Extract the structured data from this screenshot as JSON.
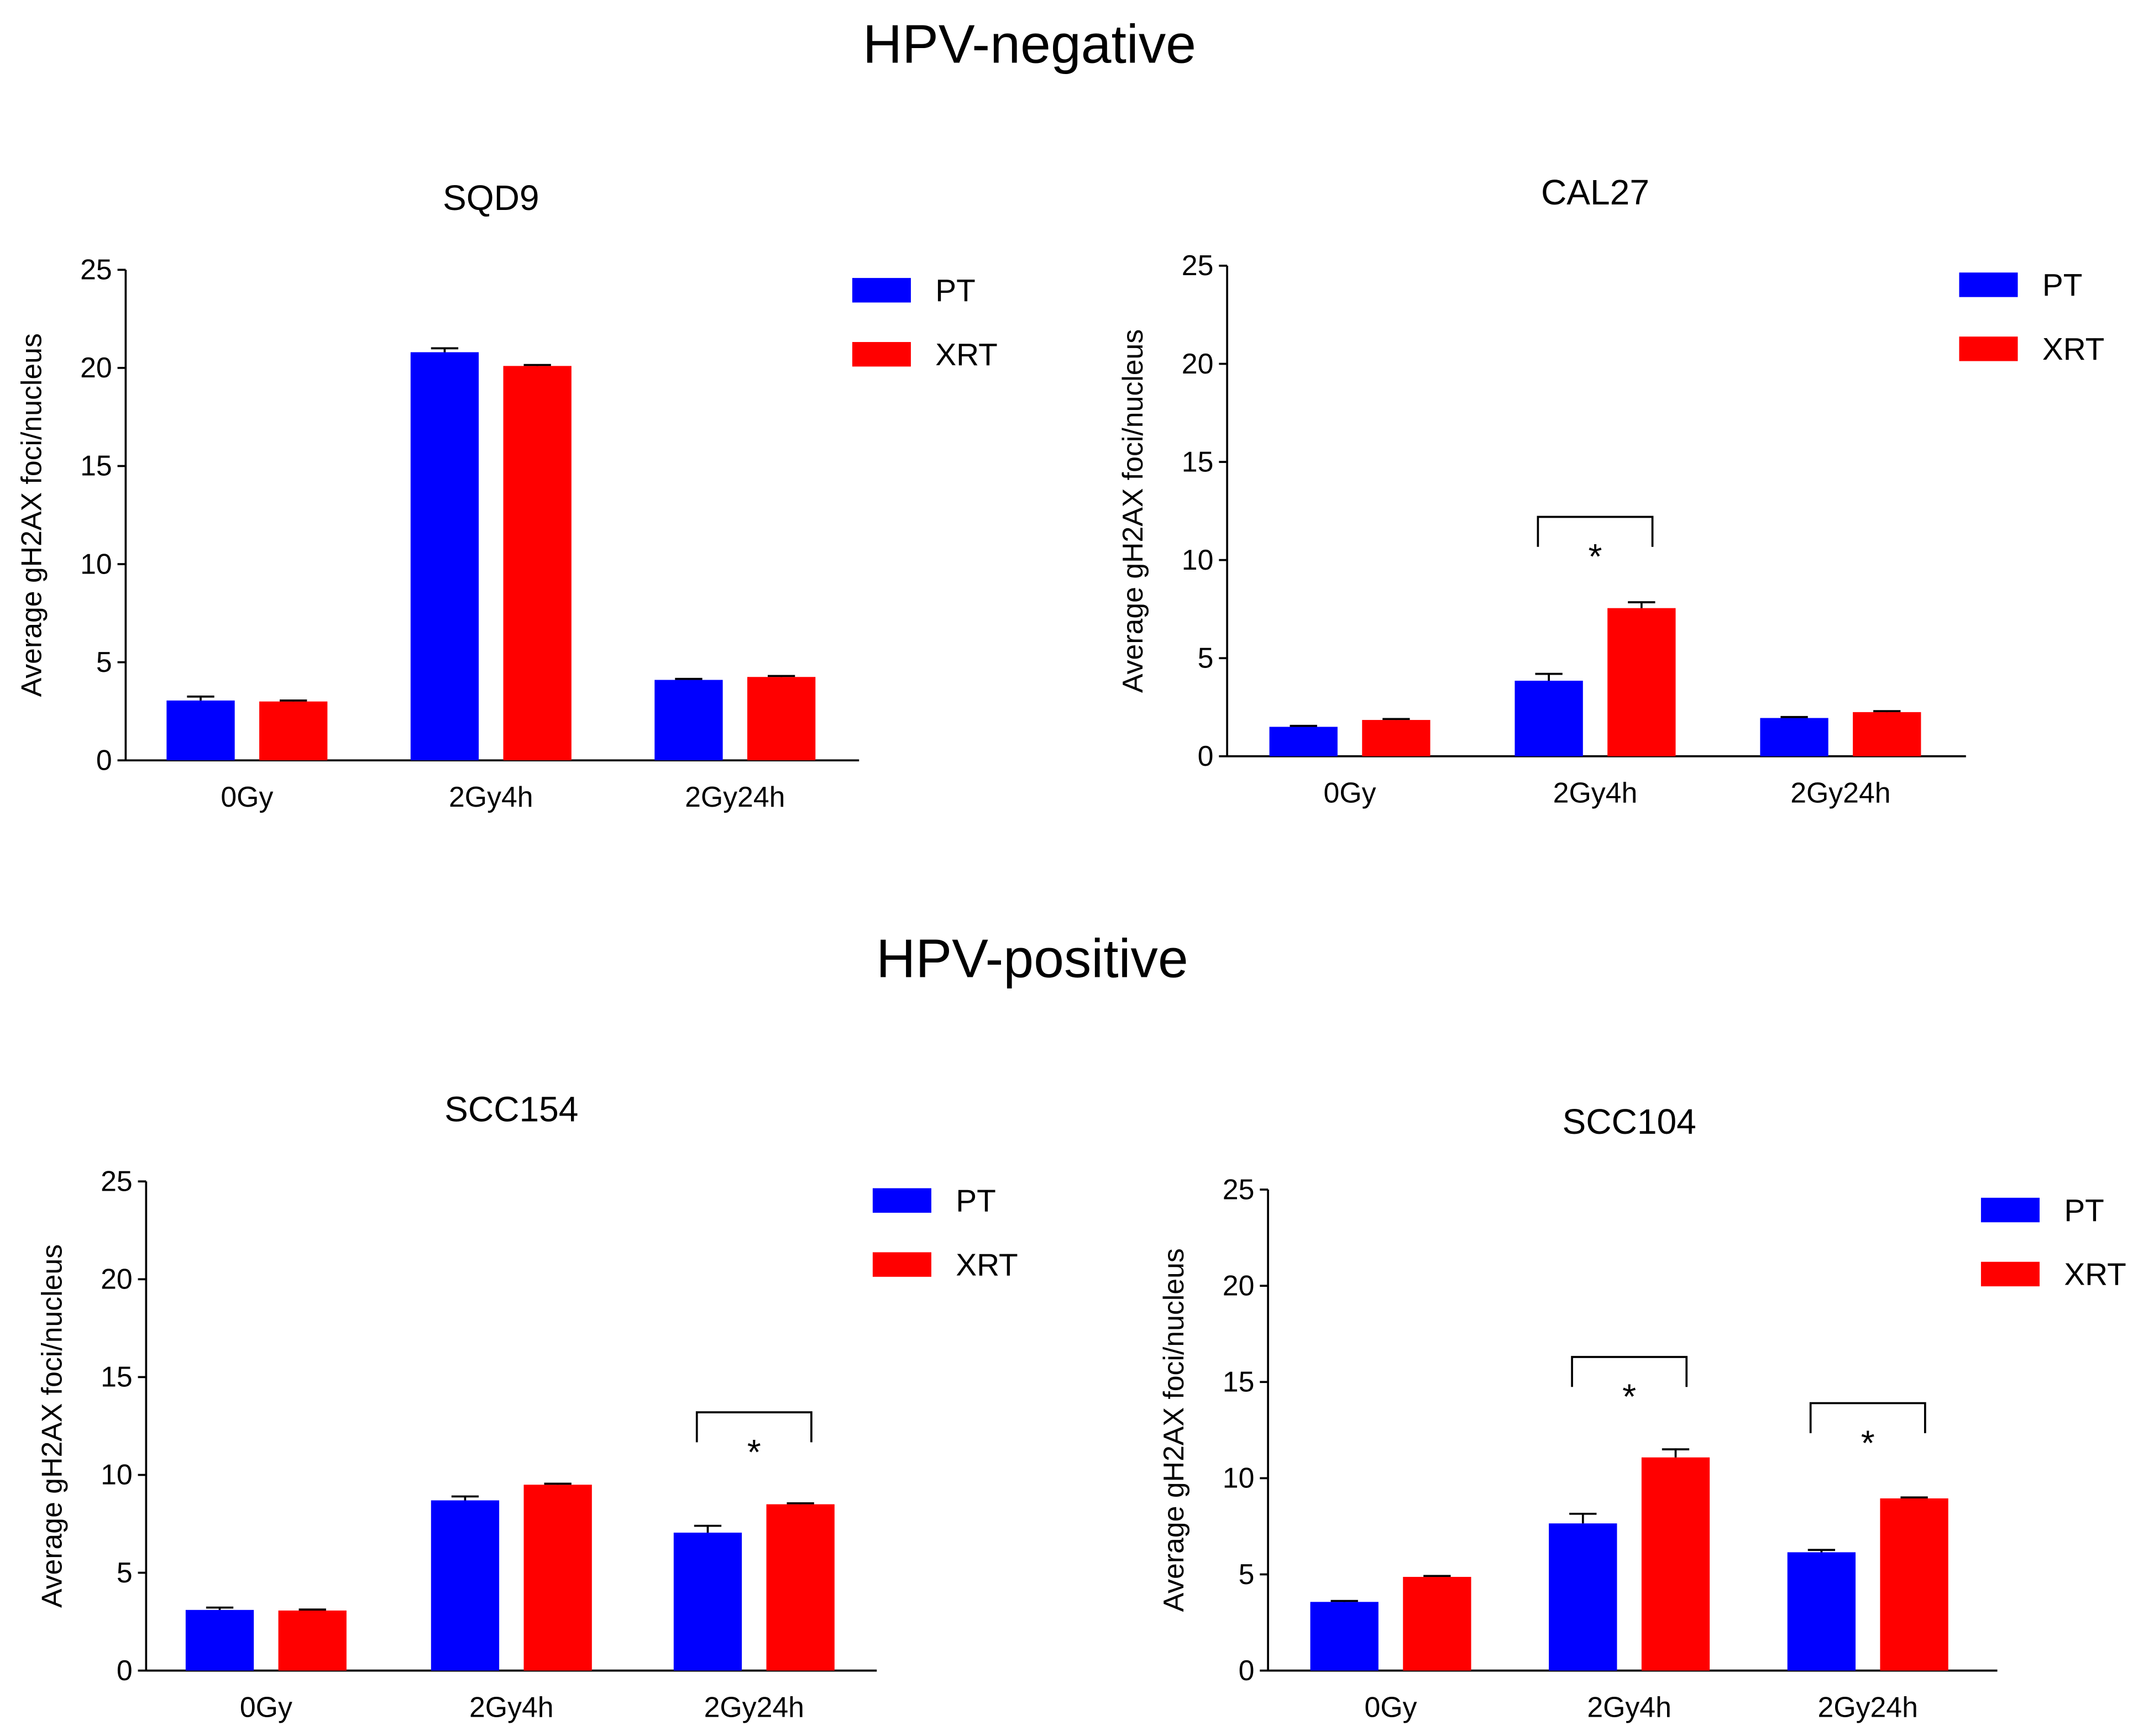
{
  "headings": {
    "negative": "HPV-negative",
    "positive": "HPV-positive"
  },
  "colors": {
    "PT": "#0000ff",
    "XRT": "#ff0000",
    "axis": "#000000"
  },
  "chart_data": [
    {
      "type": "bar",
      "title": "SQD9",
      "group": "HPV-negative",
      "xlabel": "",
      "ylabel": "Average gH2AX foci/nucleus",
      "ylim": [
        0,
        25
      ],
      "yticks": [
        "0",
        "5",
        "10",
        "15",
        "20",
        "25"
      ],
      "categories": [
        "0Gy",
        "2Gy4h",
        "2Gy24h"
      ],
      "legend_position": "top-right",
      "series": [
        {
          "name": "PT",
          "values": [
            3.05,
            20.8,
            4.1
          ],
          "errors": [
            0.2,
            0.2,
            0.05
          ]
        },
        {
          "name": "XRT",
          "values": [
            3.0,
            20.1,
            4.25
          ],
          "errors": [
            0.05,
            0.05,
            0.05
          ]
        }
      ],
      "significance": []
    },
    {
      "type": "bar",
      "title": "CAL27",
      "group": "HPV-negative",
      "xlabel": "",
      "ylabel": "Average gH2AX foci/nucleus",
      "ylim": [
        0,
        25
      ],
      "yticks": [
        "0",
        "5",
        "10",
        "15",
        "20",
        "25"
      ],
      "categories": [
        "0Gy",
        "2Gy4h",
        "2Gy24h"
      ],
      "legend_position": "top-right",
      "series": [
        {
          "name": "PT",
          "values": [
            1.5,
            3.85,
            1.95
          ],
          "errors": [
            0.05,
            0.35,
            0.05
          ]
        },
        {
          "name": "XRT",
          "values": [
            1.85,
            7.55,
            2.25
          ],
          "errors": [
            0.05,
            0.3,
            0.05
          ]
        }
      ],
      "significance": [
        {
          "category": 1,
          "level": 12.2,
          "label": "*"
        }
      ]
    },
    {
      "type": "bar",
      "title": "SCC154",
      "group": "HPV-positive",
      "xlabel": "",
      "ylabel": "Average gH2AX foci/nucleus",
      "ylim": [
        0,
        25
      ],
      "yticks": [
        "0",
        "5",
        "10",
        "15",
        "20",
        "25"
      ],
      "categories": [
        "0Gy",
        "2Gy4h",
        "2Gy24h"
      ],
      "legend_position": "top-right",
      "series": [
        {
          "name": "PT",
          "values": [
            3.1,
            8.7,
            7.05
          ],
          "errors": [
            0.12,
            0.2,
            0.35
          ]
        },
        {
          "name": "XRT",
          "values": [
            3.07,
            9.5,
            8.5
          ],
          "errors": [
            0.05,
            0.05,
            0.05
          ]
        }
      ],
      "significance": [
        {
          "category": 2,
          "level": 13.2,
          "label": "*"
        }
      ]
    },
    {
      "type": "bar",
      "title": "SCC104",
      "group": "HPV-positive",
      "xlabel": "",
      "ylabel": "Average gH2AX foci/nucleus",
      "ylim": [
        0,
        25
      ],
      "yticks": [
        "0",
        "5",
        "10",
        "15",
        "20",
        "25"
      ],
      "categories": [
        "0Gy",
        "2Gy4h",
        "2Gy24h"
      ],
      "legend_position": "top-right",
      "series": [
        {
          "name": "PT",
          "values": [
            3.57,
            7.65,
            6.15
          ],
          "errors": [
            0.05,
            0.5,
            0.12
          ]
        },
        {
          "name": "XRT",
          "values": [
            4.87,
            11.08,
            8.95
          ],
          "errors": [
            0.05,
            0.42,
            0.05
          ]
        }
      ],
      "significance": [
        {
          "category": 1,
          "level": 16.3,
          "label": "*"
        },
        {
          "category": 2,
          "level": 13.9,
          "label": "*"
        }
      ]
    }
  ]
}
